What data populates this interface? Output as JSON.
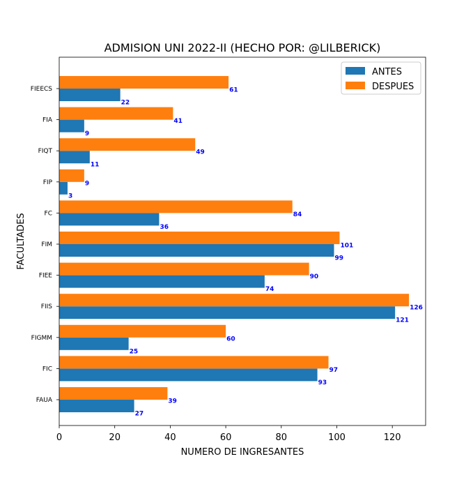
{
  "chart_data": {
    "type": "bar",
    "orientation": "horizontal",
    "title": "ADMISION UNI 2022-II (HECHO POR: @LILBERICK)",
    "xlabel": "NUMERO DE INGRESANTES",
    "ylabel": "FACULTADES",
    "xlim": [
      0,
      132
    ],
    "xticks": [
      0,
      20,
      40,
      60,
      80,
      100,
      120
    ],
    "grid": false,
    "legend_position": "top-right",
    "categories": [
      "FIEECS",
      "FIA",
      "FIQT",
      "FIP",
      "FC",
      "FIM",
      "FIEE",
      "FIIS",
      "FIGMM",
      "FIC",
      "FAUA"
    ],
    "series": [
      {
        "name": "ANTES",
        "color": "#1f77b4",
        "values": [
          22,
          9,
          11,
          3,
          36,
          99,
          74,
          121,
          25,
          93,
          27
        ]
      },
      {
        "name": "DESPUES",
        "color": "#ff7f0e",
        "values": [
          61,
          41,
          49,
          9,
          84,
          101,
          90,
          126,
          60,
          97,
          39
        ]
      }
    ],
    "data_label_color": "#0000ff"
  }
}
